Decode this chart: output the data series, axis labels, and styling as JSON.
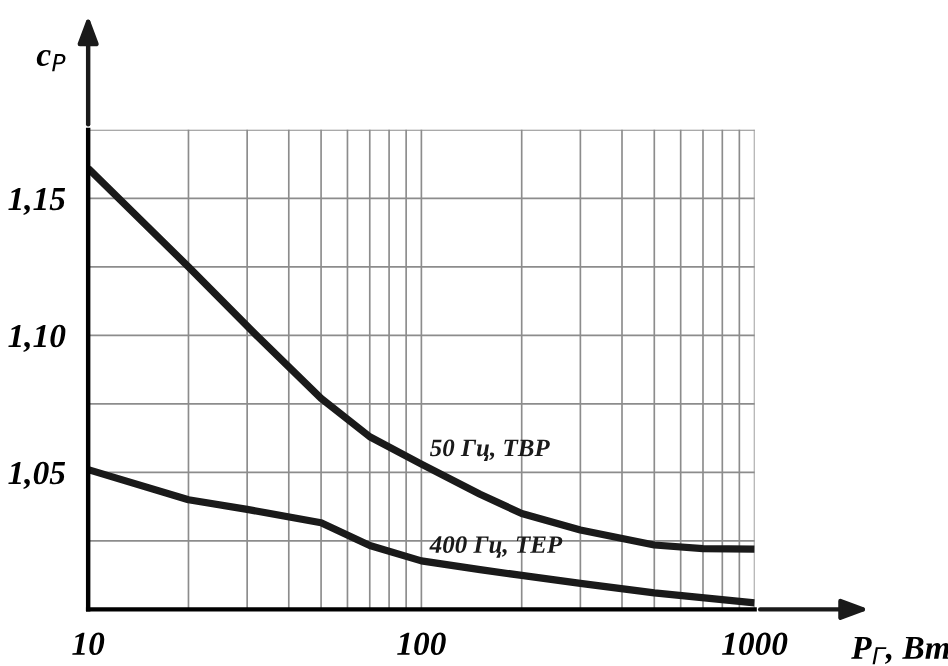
{
  "chart_data": {
    "type": "line",
    "xlabel": "P$_{Г}$, Вт",
    "ylabel": "c$_{P}$",
    "log": "x",
    "grid": true,
    "marker": "none",
    "line_style": "solid",
    "xlim": [
      10,
      1000
    ],
    "ylim": [
      1.0,
      1.175
    ],
    "xticks": [
      {
        "value": 10,
        "label": "10"
      },
      {
        "value": 20,
        "label": null
      },
      {
        "value": 30,
        "label": null
      },
      {
        "value": 40,
        "label": null
      },
      {
        "value": 50,
        "label": null
      },
      {
        "value": 60,
        "label": null
      },
      {
        "value": 70,
        "label": null
      },
      {
        "value": 80,
        "label": null
      },
      {
        "value": 90,
        "label": null
      },
      {
        "value": 100,
        "label": "100"
      },
      {
        "value": 200,
        "label": null
      },
      {
        "value": 300,
        "label": null
      },
      {
        "value": 400,
        "label": null
      },
      {
        "value": 500,
        "label": null
      },
      {
        "value": 600,
        "label": null
      },
      {
        "value": 700,
        "label": null
      },
      {
        "value": 800,
        "label": null
      },
      {
        "value": 900,
        "label": null
      },
      {
        "value": 1000,
        "label": "1000"
      }
    ],
    "yticks": [
      {
        "value": 1.025,
        "label": null
      },
      {
        "value": 1.05,
        "label": "1,05"
      },
      {
        "value": 1.075,
        "label": null
      },
      {
        "value": 1.1,
        "label": "1,10"
      },
      {
        "value": 1.125,
        "label": null
      },
      {
        "value": 1.15,
        "label": "1,15"
      },
      {
        "value": 1.175,
        "label": null
      }
    ],
    "series": [
      {
        "name": "50 Гц, ТВР",
        "color": "#1a1a1a",
        "x": [
          10,
          20,
          32,
          50,
          70,
          100,
          150,
          200,
          300,
          500,
          700,
          1000
        ],
        "values": [
          1.161,
          1.125,
          1.1,
          1.077,
          1.063,
          1.053,
          1.042,
          1.035,
          1.029,
          1.0235,
          1.0222,
          1.022
        ]
      },
      {
        "name": "400 Гц, ТЕР",
        "color": "#1a1a1a",
        "x": [
          10,
          20,
          30,
          50,
          70,
          100,
          150,
          200,
          300,
          500,
          1000
        ],
        "values": [
          1.051,
          1.04,
          1.0365,
          1.0316,
          1.0233,
          1.0177,
          1.0145,
          1.0124,
          1.0095,
          1.006,
          1.0024
        ]
      }
    ]
  }
}
